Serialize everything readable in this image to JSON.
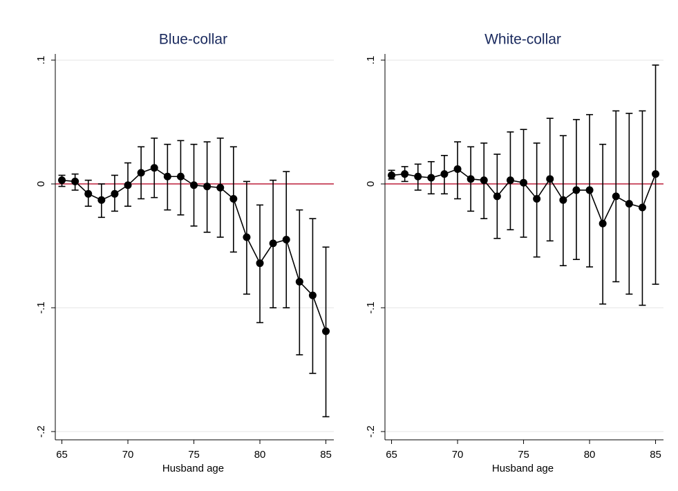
{
  "chart_data": [
    {
      "type": "line",
      "title": "Blue-collar",
      "x_label": "Husband age",
      "color": "#000000",
      "x": [
        65,
        66,
        67,
        68,
        69,
        70,
        71,
        72,
        73,
        74,
        75,
        76,
        77,
        78,
        79,
        80,
        81,
        82,
        83,
        84,
        85
      ],
      "values": [
        0.003,
        0.002,
        -0.008,
        -0.013,
        -0.008,
        -0.001,
        0.009,
        0.013,
        0.006,
        0.006,
        -0.001,
        -0.002,
        -0.003,
        -0.012,
        -0.043,
        -0.064,
        -0.048,
        -0.045,
        -0.079,
        -0.09,
        -0.119
      ],
      "ci_upper": [
        0.007,
        0.008,
        0.003,
        0,
        0.007,
        0.017,
        0.03,
        0.037,
        0.032,
        0.035,
        0.032,
        0.034,
        0.037,
        0.03,
        0.002,
        -0.017,
        0.003,
        0.01,
        -0.021,
        -0.028,
        -0.051
      ],
      "ci_lower": [
        -0.002,
        -0.005,
        -0.018,
        -0.027,
        -0.022,
        -0.018,
        -0.012,
        -0.011,
        -0.021,
        -0.025,
        -0.034,
        -0.039,
        -0.043,
        -0.055,
        -0.089,
        -0.112,
        -0.1,
        -0.1,
        -0.138,
        -0.153,
        -0.188
      ],
      "reference_line": 0,
      "reference_color": "#c0304a",
      "xlim": [
        64.5,
        85.6
      ],
      "xticks": [
        65,
        70,
        75,
        80,
        85
      ],
      "ylim": [
        -0.205,
        0.105
      ],
      "yticks": [
        {
          "value": 0.1,
          "label": ".1"
        },
        0,
        {
          "value": -0.1,
          "label": "-.1"
        },
        {
          "value": -0.2,
          "label": "-.2"
        }
      ],
      "grid": true
    },
    {
      "type": "line",
      "title": "White-collar",
      "x_label": "Husband age",
      "color": "#000000",
      "x": [
        65,
        66,
        67,
        68,
        69,
        70,
        71,
        72,
        73,
        74,
        75,
        76,
        77,
        78,
        79,
        80,
        81,
        82,
        83,
        84,
        85
      ],
      "values": [
        0.007,
        0.008,
        0.006,
        0.005,
        0.008,
        0.012,
        0.004,
        0.003,
        -0.01,
        0.003,
        0.001,
        -0.012,
        0.004,
        -0.013,
        -0.005,
        -0.005,
        -0.032,
        -0.01,
        -0.016,
        -0.019,
        0.008
      ],
      "ci_upper": [
        0.011,
        0.014,
        0.016,
        0.018,
        0.023,
        0.034,
        0.03,
        0.033,
        0.024,
        0.042,
        0.044,
        0.033,
        0.053,
        0.039,
        0.052,
        0.056,
        0.032,
        0.059,
        0.057,
        0.059,
        0.096
      ],
      "ci_lower": [
        0.004,
        0.002,
        -0.005,
        -0.008,
        -0.008,
        -0.012,
        -0.022,
        -0.028,
        -0.044,
        -0.037,
        -0.043,
        -0.059,
        -0.046,
        -0.066,
        -0.061,
        -0.067,
        -0.097,
        -0.079,
        -0.089,
        -0.098,
        -0.081
      ],
      "reference_line": 0,
      "reference_color": "#c0304a",
      "xlim": [
        64.5,
        85.6
      ],
      "xticks": [
        65,
        70,
        75,
        80,
        85
      ],
      "ylim": [
        -0.205,
        0.105
      ],
      "yticks": [
        {
          "value": 0.1,
          "label": ".1"
        },
        0,
        {
          "value": -0.1,
          "label": "-.1"
        },
        {
          "value": -0.2,
          "label": "-.2"
        }
      ],
      "grid": true
    }
  ]
}
